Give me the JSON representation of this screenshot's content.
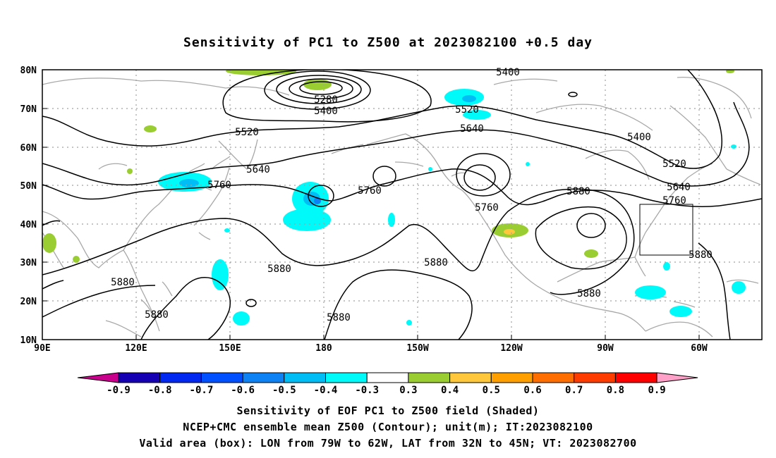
{
  "title": "Sensitivity of PC1 to Z500 at 2023082100 +0.5 day",
  "lat_labels": [
    "80N",
    "70N",
    "60N",
    "50N",
    "40N",
    "30N",
    "20N",
    "10N"
  ],
  "lon_labels": [
    "90E",
    "120E",
    "150E",
    "180",
    "150W",
    "120W",
    "90W",
    "60W"
  ],
  "contour_labels": [
    "5280",
    "5400",
    "5400",
    "5400",
    "5520",
    "5520",
    "5520",
    "5640",
    "5640",
    "5640",
    "5760",
    "5760",
    "5760",
    "5760",
    "5880",
    "5880",
    "5880",
    "5880",
    "5880",
    "5880",
    "5880",
    "5880"
  ],
  "colorbar": {
    "labels": [
      "-0.9",
      "-0.8",
      "-0.7",
      "-0.6",
      "-0.5",
      "-0.4",
      "-0.3",
      "0.3",
      "0.4",
      "0.5",
      "0.6",
      "0.7",
      "0.8",
      "0.9"
    ],
    "colors": [
      "#1600b4",
      "#0028f0",
      "#0050ff",
      "#0d82f5",
      "#00bef5",
      "#00fafa",
      "#ffffff",
      "#9acd32",
      "#ffc83c",
      "#ffa000",
      "#ff6e00",
      "#ff3c00",
      "#ff0000"
    ],
    "low_arrow_color": "#c8008c",
    "high_arrow_color": "#ffa0c8"
  },
  "captions": [
    "Sensitivity of EOF PC1 to Z500 field (Shaded)",
    "NCEP+CMC ensemble mean Z500 (Contour); unit(m); IT:2023082100",
    "Valid area (box): LON from 79W to 62W, LAT from 32N to 45N; VT: 2023082700"
  ]
}
